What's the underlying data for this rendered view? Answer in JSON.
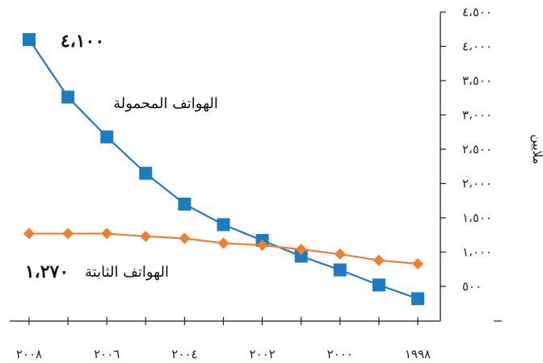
{
  "chart_data": {
    "type": "line",
    "x_direction": "right-to-left",
    "x": [
      1998,
      1999,
      2000,
      2001,
      2002,
      2003,
      2004,
      2005,
      2006,
      2007,
      2008
    ],
    "x_tick_labels": [
      "١٩٩٨",
      "٢٠٠٠",
      "٢٠٠٢",
      "٢٠٠٤",
      "٢٠٠٦",
      "٢٠٠٨"
    ],
    "x_tick_values": [
      1998,
      2000,
      2002,
      2004,
      2006,
      2008
    ],
    "ylabel": "ملايين",
    "ylim": [
      0,
      4500
    ],
    "y_ticks": [
      500,
      1000,
      1500,
      2000,
      2500,
      3000,
      3500,
      4000,
      4500
    ],
    "y_tick_labels": [
      "٥٠٠",
      "١،٠٠٠",
      "١،٥٠٠",
      "٢،٠٠٠",
      "٢،٥٠٠",
      "٣،٠٠٠",
      "٣،٥٠٠",
      "٤،٠٠٠",
      "٤،٥٠٠"
    ],
    "grid": false,
    "series": [
      {
        "name": "الهواتف المحمولة",
        "color": "#1f7bbf",
        "marker": "square",
        "end_label": "٤،١٠٠",
        "x": [
          1998,
          1999,
          2000,
          2001,
          2002,
          2003,
          2004,
          2005,
          2006,
          2007,
          2008
        ],
        "values": [
          320,
          520,
          740,
          940,
          1170,
          1400,
          1700,
          2150,
          2680,
          3260,
          4100
        ]
      },
      {
        "name": "الهواتف الثابتة",
        "color": "#f07f2d",
        "marker": "diamond",
        "end_label": "١،٢٧٠",
        "x": [
          1998,
          1999,
          2000,
          2001,
          2002,
          2003,
          2004,
          2005,
          2006,
          2007,
          2008
        ],
        "values": [
          830,
          880,
          970,
          1040,
          1100,
          1130,
          1200,
          1230,
          1270,
          1270,
          1270
        ]
      }
    ]
  }
}
